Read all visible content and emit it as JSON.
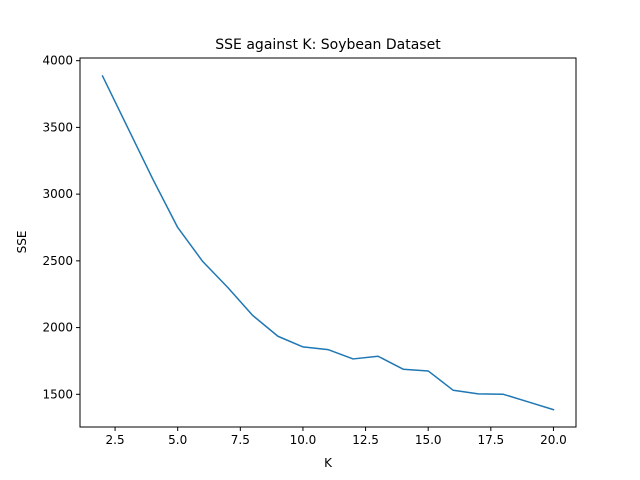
{
  "chart_data": {
    "type": "line",
    "title": "SSE against K: Soybean Dataset",
    "xlabel": "K",
    "ylabel": "SSE",
    "xlim": [
      1.1,
      20.9
    ],
    "ylim": [
      1255,
      4020
    ],
    "xticks": [
      2.5,
      5.0,
      7.5,
      10.0,
      12.5,
      15.0,
      17.5,
      20.0
    ],
    "xtick_labels": [
      "2.5",
      "5.0",
      "7.5",
      "10.0",
      "12.5",
      "15.0",
      "17.5",
      "20.0"
    ],
    "yticks": [
      1500,
      2000,
      2500,
      3000,
      3500,
      4000
    ],
    "ytick_labels": [
      "1500",
      "2000",
      "2500",
      "3000",
      "3500",
      "4000"
    ],
    "grid": false,
    "series": [
      {
        "color": "#1f77b4",
        "x": [
          2,
          3,
          4,
          5,
          6,
          7,
          8,
          9,
          10,
          11,
          12,
          13,
          14,
          15,
          16,
          17,
          18,
          19,
          20
        ],
        "y": [
          3885,
          3500,
          3115,
          2750,
          2495,
          2300,
          2090,
          1935,
          1855,
          1835,
          1765,
          1785,
          1688,
          1675,
          1530,
          1503,
          1500,
          1443,
          1385
        ]
      }
    ]
  }
}
